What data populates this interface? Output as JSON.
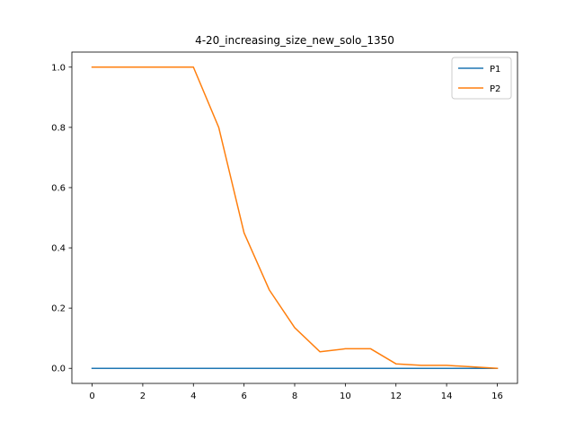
{
  "chart_data": {
    "type": "line",
    "title": "4-20_increasing_size_new_solo_1350",
    "xlabel": "",
    "ylabel": "",
    "x": [
      0,
      1,
      2,
      3,
      4,
      5,
      6,
      7,
      8,
      9,
      10,
      11,
      12,
      13,
      14,
      15,
      16
    ],
    "xlim": [
      -0.8,
      16.8
    ],
    "ylim": [
      -0.05,
      1.05
    ],
    "xticks": [
      0,
      2,
      4,
      6,
      8,
      10,
      12,
      14,
      16
    ],
    "yticks": [
      0.0,
      0.2,
      0.4,
      0.6,
      0.8,
      1.0
    ],
    "xtick_labels": [
      "0",
      "2",
      "4",
      "6",
      "8",
      "10",
      "12",
      "14",
      "16"
    ],
    "ytick_labels": [
      "0.0",
      "0.2",
      "0.4",
      "0.6",
      "0.8",
      "1.0"
    ],
    "grid": false,
    "legend_position": "top-right",
    "series": [
      {
        "name": "P1",
        "color": "#1f77b4",
        "values": [
          0,
          0,
          0,
          0,
          0,
          0,
          0,
          0,
          0,
          0,
          0,
          0,
          0,
          0,
          0,
          0,
          0
        ]
      },
      {
        "name": "P2",
        "color": "#ff7f0e",
        "values": [
          1.0,
          1.0,
          1.0,
          1.0,
          1.0,
          0.8,
          0.45,
          0.26,
          0.135,
          0.055,
          0.065,
          0.065,
          0.015,
          0.01,
          0.01,
          0.005,
          0.0
        ]
      }
    ]
  }
}
